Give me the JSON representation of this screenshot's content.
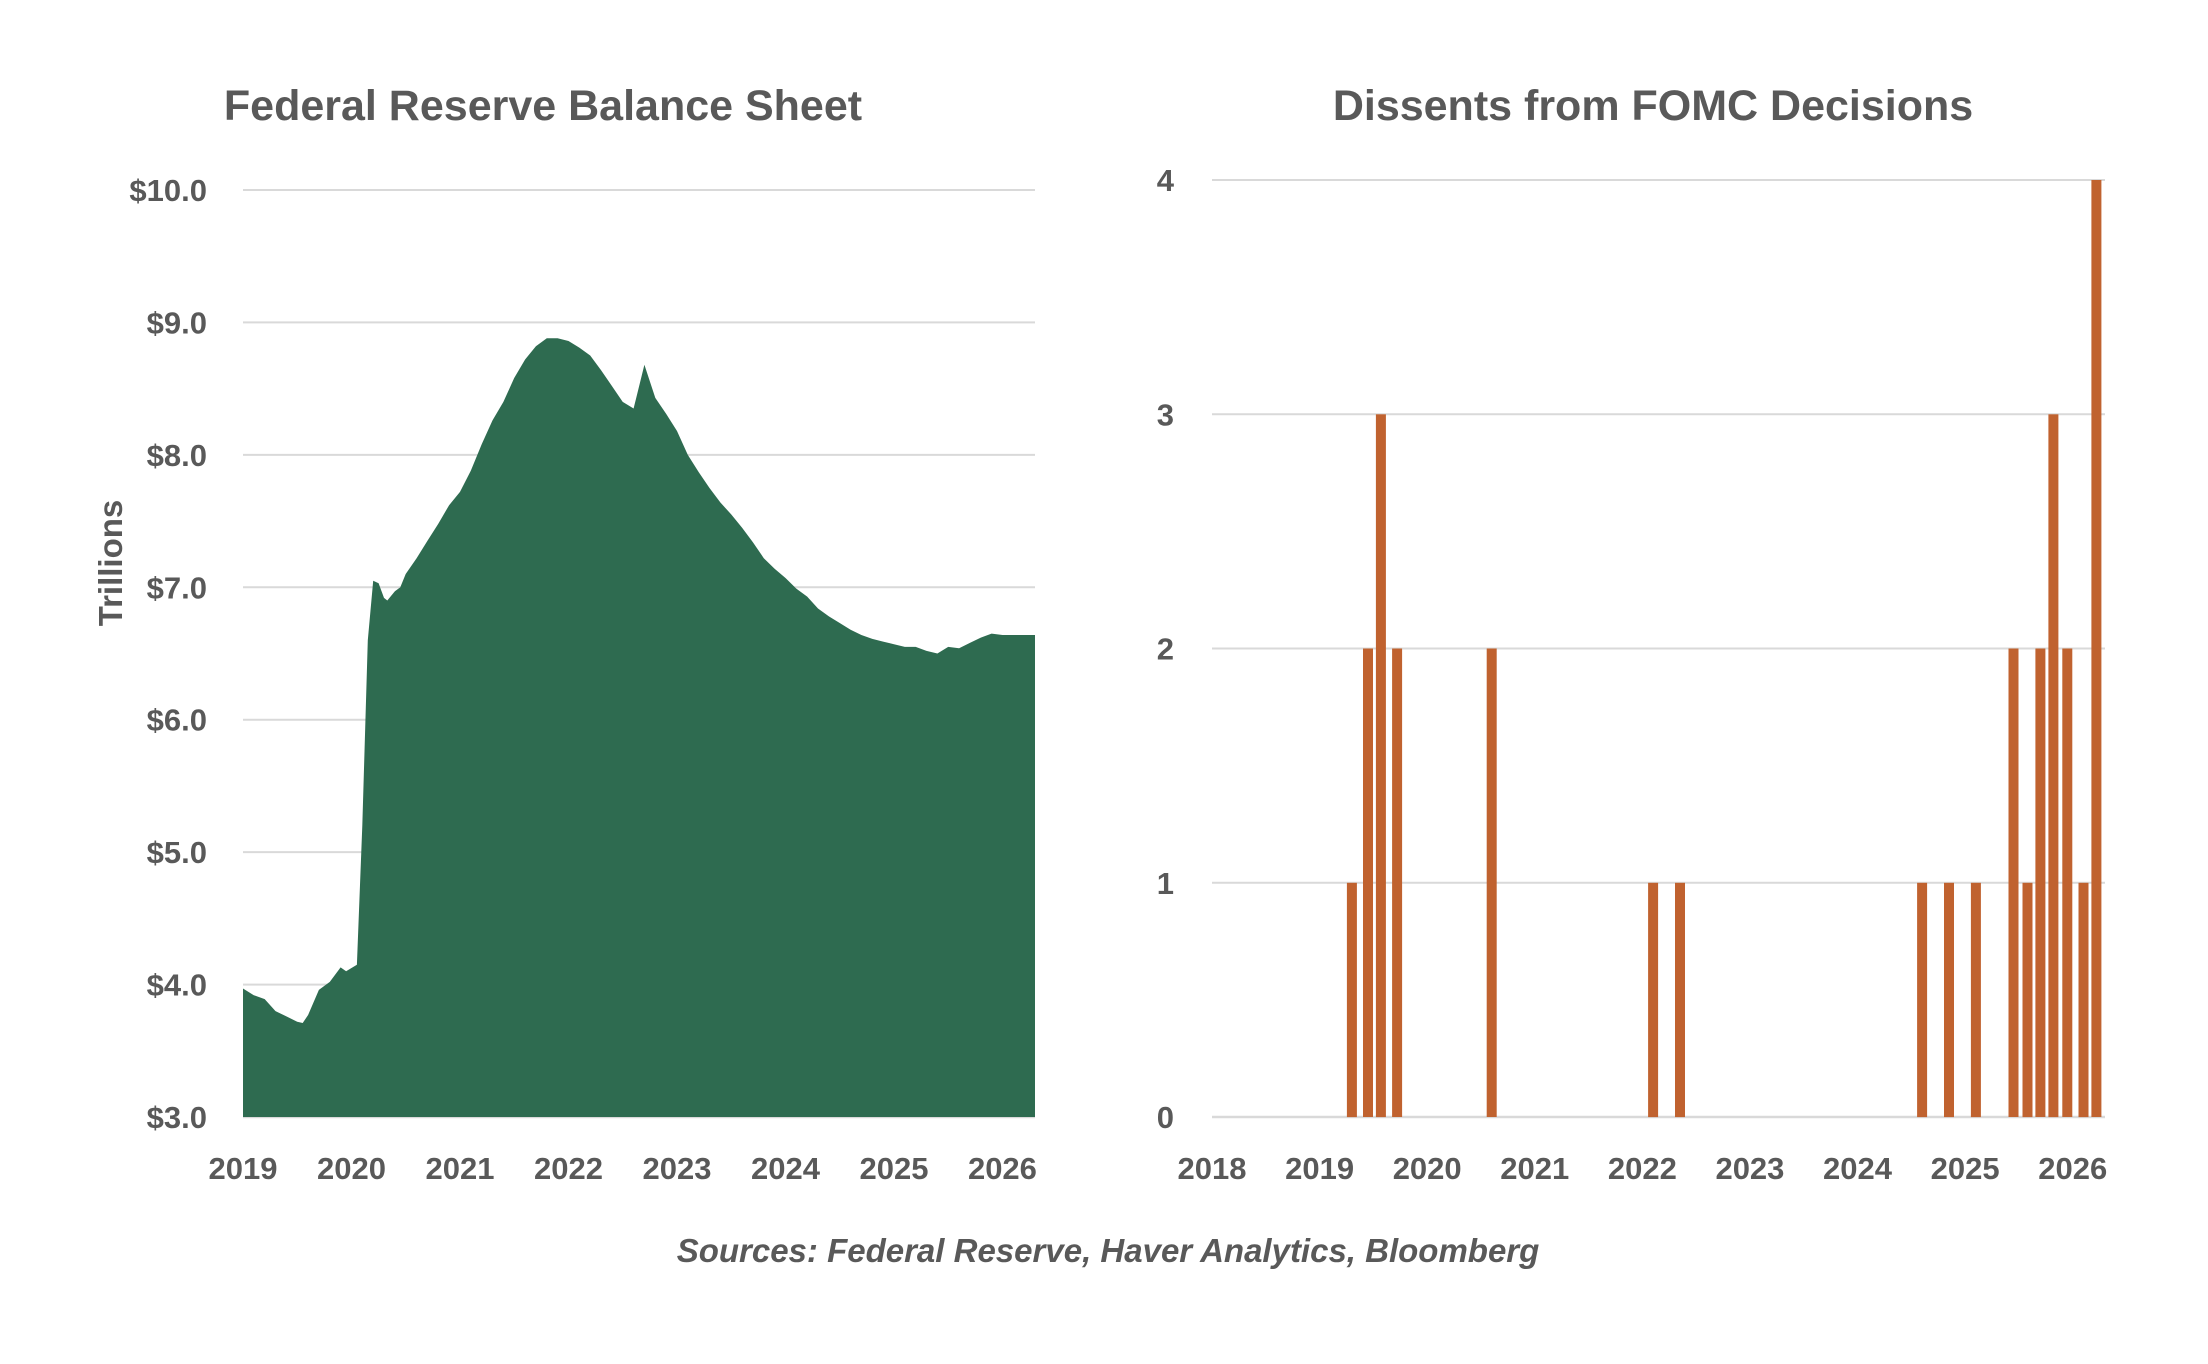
{
  "chart_data": [
    {
      "type": "area",
      "title": "Federal Reserve Balance Sheet",
      "xlabel": "",
      "ylabel": "Trillions",
      "x_range": [
        2019.0,
        2026.3
      ],
      "ylim": [
        3.0,
        10.0
      ],
      "y_ticks": [
        "$3.0",
        "$4.0",
        "$5.0",
        "$6.0",
        "$7.0",
        "$8.0",
        "$9.0",
        "$10.0"
      ],
      "x_ticks": [
        "2019",
        "2020",
        "2021",
        "2022",
        "2023",
        "2024",
        "2025",
        "2026"
      ],
      "grid": true,
      "color": "#2e6b50",
      "x": [
        2019.0,
        2019.1,
        2019.2,
        2019.3,
        2019.4,
        2019.5,
        2019.55,
        2019.6,
        2019.7,
        2019.8,
        2019.9,
        2019.95,
        2020.05,
        2020.1,
        2020.15,
        2020.2,
        2020.25,
        2020.3,
        2020.33,
        2020.4,
        2020.45,
        2020.5,
        2020.6,
        2020.7,
        2020.8,
        2020.9,
        2021.0,
        2021.1,
        2021.2,
        2021.3,
        2021.4,
        2021.5,
        2021.6,
        2021.7,
        2021.8,
        2021.9,
        2022.0,
        2022.1,
        2022.2,
        2022.3,
        2022.4,
        2022.5,
        2022.6,
        2022.7,
        2022.8,
        2022.9,
        2023.0,
        2023.1,
        2023.2,
        2023.3,
        2023.4,
        2023.5,
        2023.6,
        2023.7,
        2023.8,
        2023.9,
        2024.0,
        2024.1,
        2024.2,
        2024.3,
        2024.4,
        2024.5,
        2024.6,
        2024.7,
        2024.8,
        2024.9,
        2025.0,
        2025.1,
        2025.2,
        2025.3,
        2025.4,
        2025.5,
        2025.6,
        2025.7,
        2025.8,
        2025.9,
        2026.0,
        2026.1,
        2026.2,
        2026.3
      ],
      "values": [
        3.97,
        3.92,
        3.89,
        3.8,
        3.76,
        3.72,
        3.71,
        3.77,
        3.96,
        4.02,
        4.13,
        4.1,
        4.15,
        5.2,
        6.6,
        7.05,
        7.03,
        6.92,
        6.9,
        6.97,
        7.0,
        7.1,
        7.22,
        7.35,
        7.48,
        7.62,
        7.72,
        7.88,
        8.08,
        8.26,
        8.4,
        8.58,
        8.72,
        8.82,
        8.88,
        8.88,
        8.86,
        8.81,
        8.75,
        8.64,
        8.52,
        8.4,
        8.35,
        8.68,
        8.43,
        8.31,
        8.18,
        8.0,
        7.87,
        7.75,
        7.64,
        7.55,
        7.45,
        7.34,
        7.22,
        7.14,
        7.07,
        6.99,
        6.93,
        6.84,
        6.78,
        6.73,
        6.68,
        6.64,
        6.61,
        6.59,
        6.57,
        6.55,
        6.55,
        6.52,
        6.5,
        6.55,
        6.54,
        6.58,
        6.62,
        6.65,
        6.64,
        6.64,
        6.64,
        6.64
      ]
    },
    {
      "type": "bar",
      "title": "Dissents from FOMC Decisions",
      "xlabel": "",
      "ylabel": "",
      "x_range": [
        2018.0,
        2026.3
      ],
      "ylim": [
        0,
        4
      ],
      "y_ticks": [
        "0",
        "1",
        "2",
        "3",
        "4"
      ],
      "x_ticks": [
        "2018",
        "2019",
        "2020",
        "2021",
        "2022",
        "2023",
        "2024",
        "2025",
        "2026"
      ],
      "grid": true,
      "color": "#c0622f",
      "x": [
        2019.3,
        2019.45,
        2019.57,
        2019.72,
        2020.6,
        2022.1,
        2022.35,
        2024.6,
        2024.85,
        2025.1,
        2025.45,
        2025.58,
        2025.7,
        2025.82,
        2025.95,
        2026.1,
        2026.22
      ],
      "values": [
        1,
        2,
        3,
        2,
        2,
        1,
        1,
        1,
        1,
        1,
        2,
        1,
        2,
        3,
        2,
        1,
        4
      ]
    }
  ],
  "source_note": "Sources: Federal Reserve, Haver Analytics, Bloomberg"
}
